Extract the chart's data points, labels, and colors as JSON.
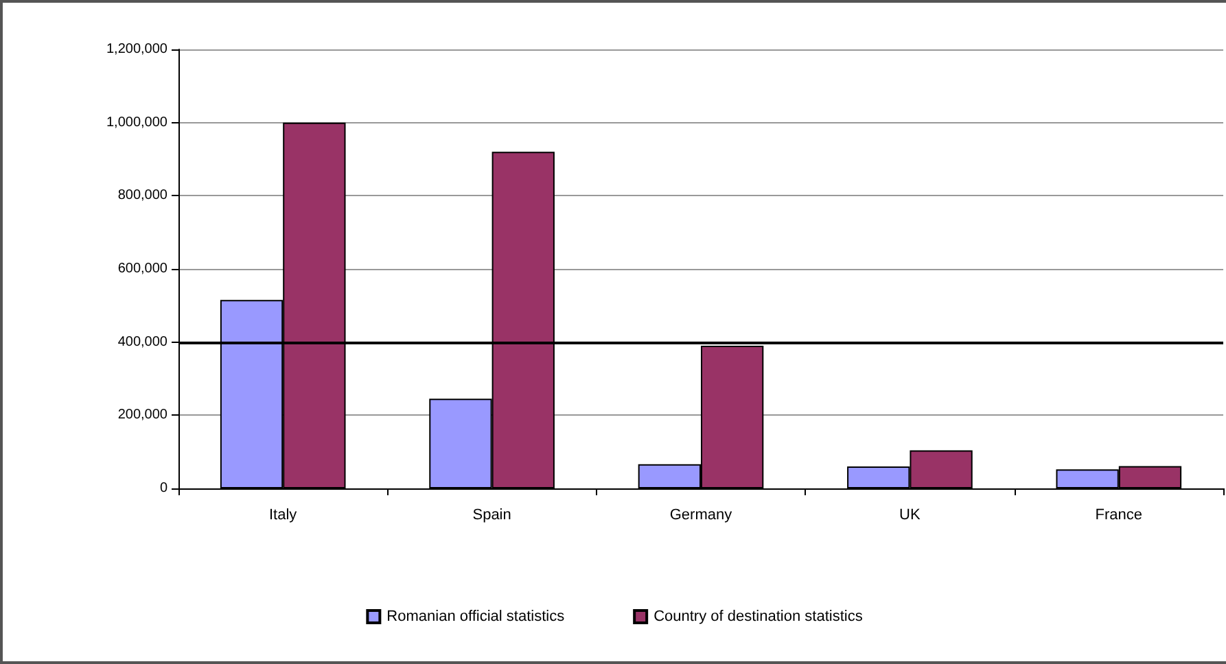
{
  "chart_data": {
    "type": "bar",
    "categories": [
      "Italy",
      "Spain",
      "Germany",
      "UK",
      "France"
    ],
    "series": [
      {
        "name": "Romanian official statistics",
        "color": "#9999ff",
        "values": [
          515000,
          245000,
          66000,
          60000,
          52000
        ]
      },
      {
        "name": "Country of destination statistics",
        "color": "#993366",
        "values": [
          1000000,
          920000,
          390000,
          104000,
          61000
        ]
      }
    ],
    "ylim": [
      0,
      1200000
    ],
    "yticks": [
      {
        "value": 0,
        "label": "0"
      },
      {
        "value": 200000,
        "label": "200,000"
      },
      {
        "value": 400000,
        "label": "400,000"
      },
      {
        "value": 600000,
        "label": "600,000"
      },
      {
        "value": 800000,
        "label": "800,000"
      },
      {
        "value": 1000000,
        "label": "1,000,000"
      },
      {
        "value": 1200000,
        "label": "1,200,000"
      }
    ],
    "ref_lines": [
      {
        "axis": "y",
        "value": 400000,
        "color": "#000000"
      }
    ],
    "grid": "y",
    "legend": "bottom"
  }
}
